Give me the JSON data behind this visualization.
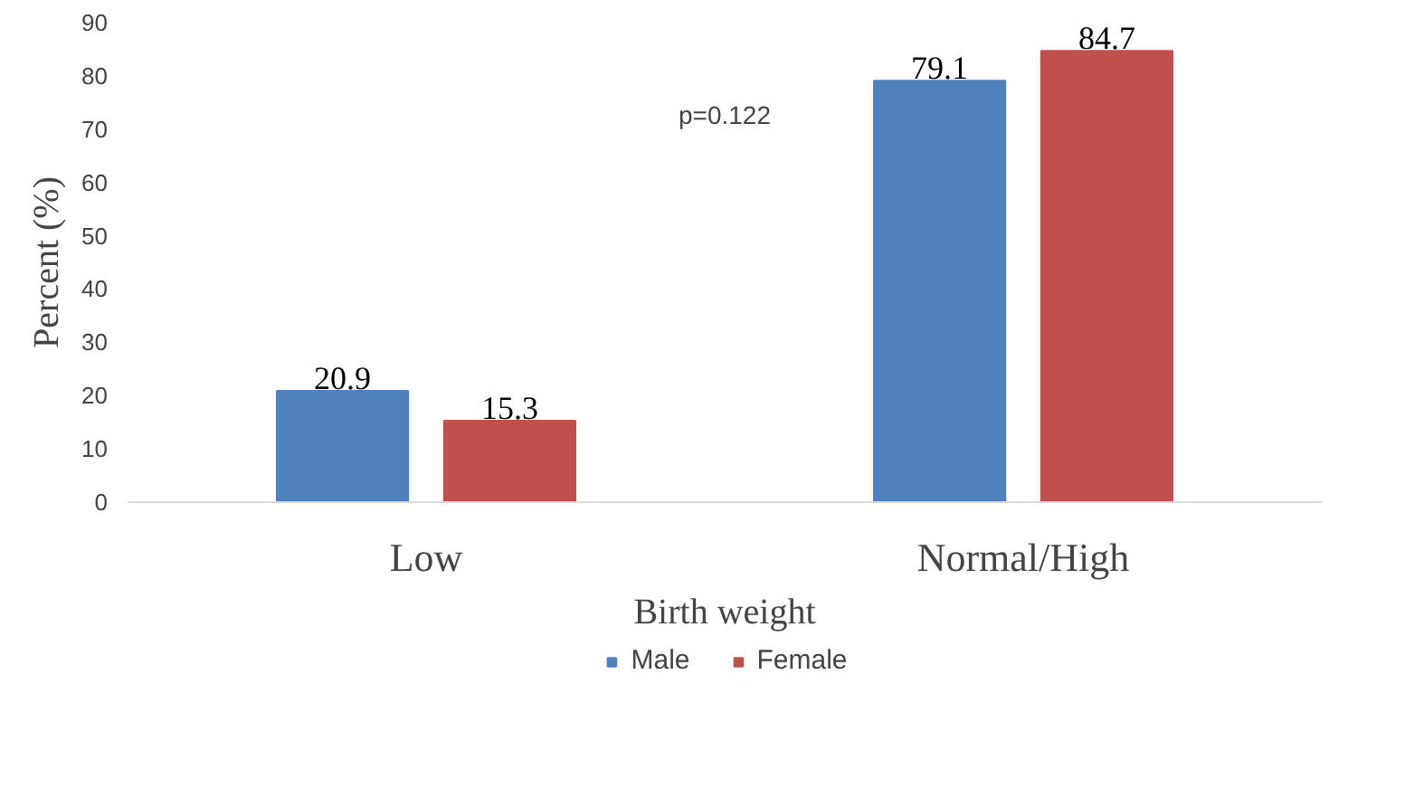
{
  "chart_data": {
    "type": "bar",
    "xlabel": "Birth weight",
    "ylabel": "Percent (%)",
    "categories": [
      "Low",
      "Normal/High"
    ],
    "series": [
      {
        "name": "Male",
        "color": "#4f81bd",
        "values": [
          20.9,
          79.1
        ]
      },
      {
        "name": "Female",
        "color": "#c0504d",
        "values": [
          15.3,
          84.7
        ]
      }
    ],
    "ylim": [
      0,
      90
    ],
    "yticks": [
      0,
      10,
      20,
      30,
      40,
      50,
      60,
      70,
      80,
      90
    ],
    "grid": false,
    "legend": "bottom",
    "data_labels": true,
    "annotations": [
      "p=0.122"
    ]
  }
}
